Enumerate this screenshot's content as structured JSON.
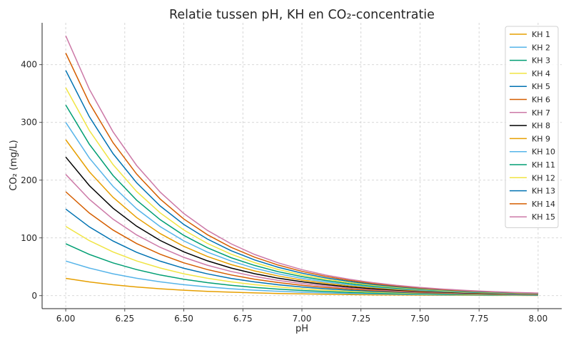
{
  "chart_data": {
    "type": "line",
    "title": "Relatie tussen pH, KH en CO₂-concentratie",
    "xlabel": "pH",
    "ylabel": "CO₂ (mg/L)",
    "xlim": [
      5.9,
      8.1
    ],
    "ylim": [
      -22.5,
      472.5
    ],
    "xticks": [
      6.0,
      6.25,
      6.5,
      6.75,
      7.0,
      7.25,
      7.5,
      7.75,
      8.0
    ],
    "xtick_labels": [
      "6.00",
      "6.25",
      "6.50",
      "6.75",
      "7.00",
      "7.25",
      "7.50",
      "7.75",
      "8.00"
    ],
    "yticks": [
      0,
      100,
      200,
      300,
      400
    ],
    "ytick_labels": [
      "0",
      "100",
      "200",
      "300",
      "400"
    ],
    "grid": true,
    "legend_position": "top-right",
    "x": [
      6.0,
      6.1,
      6.2,
      6.3,
      6.4,
      6.5,
      6.6,
      6.7,
      6.8,
      6.9,
      7.0,
      7.1,
      7.2,
      7.3,
      7.4,
      7.5,
      7.6,
      7.7,
      7.8,
      7.9,
      8.0
    ],
    "series": [
      {
        "name": "KH 1",
        "color": "#E69F00",
        "values": [
          30,
          23.8,
          18.9,
          15.0,
          11.9,
          9.5,
          7.5,
          6.0,
          4.8,
          3.8,
          3.0,
          2.4,
          1.9,
          1.5,
          1.2,
          0.9,
          0.8,
          0.6,
          0.5,
          0.4,
          0.3
        ]
      },
      {
        "name": "KH 2",
        "color": "#56B4E9",
        "values": [
          60,
          47.7,
          37.9,
          30.1,
          23.9,
          19.0,
          15.1,
          12.0,
          9.5,
          7.6,
          6.0,
          4.8,
          3.8,
          3.0,
          2.4,
          1.9,
          1.5,
          1.2,
          1.0,
          0.8,
          0.6
        ]
      },
      {
        "name": "KH 3",
        "color": "#009E73",
        "values": [
          90,
          71.5,
          56.8,
          45.1,
          35.8,
          28.5,
          22.6,
          18.0,
          14.3,
          11.3,
          9.0,
          7.1,
          5.7,
          4.5,
          3.6,
          2.8,
          2.3,
          1.8,
          1.4,
          1.1,
          0.9
        ]
      },
      {
        "name": "KH 4",
        "color": "#F0E442",
        "values": [
          120,
          95.3,
          75.7,
          60.1,
          47.8,
          37.9,
          30.1,
          23.9,
          19.0,
          15.1,
          12.0,
          9.5,
          7.6,
          6.0,
          4.8,
          3.8,
          3.0,
          2.4,
          1.9,
          1.5,
          1.2
        ]
      },
      {
        "name": "KH 5",
        "color": "#0072B2",
        "values": [
          150,
          119.1,
          94.6,
          75.2,
          59.7,
          47.4,
          37.7,
          29.9,
          23.8,
          18.9,
          15.0,
          11.9,
          9.5,
          7.5,
          6.0,
          4.7,
          3.8,
          3.0,
          2.4,
          1.9,
          1.5
        ]
      },
      {
        "name": "KH 6",
        "color": "#D55E00",
        "values": [
          180,
          143.0,
          113.6,
          90.2,
          71.7,
          56.9,
          45.2,
          35.9,
          28.5,
          22.7,
          18.0,
          14.3,
          11.4,
          9.0,
          7.2,
          5.7,
          4.5,
          3.6,
          2.9,
          2.3,
          1.8
        ]
      },
      {
        "name": "KH 7",
        "color": "#CC79A7",
        "values": [
          210,
          166.8,
          132.5,
          105.2,
          83.6,
          66.4,
          52.7,
          41.9,
          33.3,
          26.4,
          21.0,
          16.7,
          13.3,
          10.5,
          8.4,
          6.6,
          5.3,
          4.2,
          3.3,
          2.6,
          2.1
        ]
      },
      {
        "name": "KH 8",
        "color": "#000000",
        "values": [
          240,
          190.6,
          151.4,
          120.3,
          95.5,
          75.9,
          60.3,
          47.9,
          38.0,
          30.2,
          24.0,
          19.1,
          15.1,
          12.0,
          9.6,
          7.6,
          6.0,
          4.8,
          3.8,
          3.0,
          2.4
        ]
      },
      {
        "name": "KH 9",
        "color": "#E69F00",
        "values": [
          270,
          214.5,
          170.4,
          135.3,
          107.5,
          85.4,
          67.8,
          53.9,
          42.8,
          34.0,
          27.0,
          21.4,
          17.0,
          13.5,
          10.7,
          8.5,
          6.8,
          5.4,
          4.3,
          3.4,
          2.7
        ]
      },
      {
        "name": "KH 10",
        "color": "#56B4E9",
        "values": [
          300,
          238.3,
          189.3,
          150.4,
          119.4,
          94.9,
          75.4,
          59.9,
          47.5,
          37.8,
          30.0,
          23.8,
          18.9,
          15.0,
          11.9,
          9.5,
          7.5,
          6.0,
          4.8,
          3.8,
          3.0
        ]
      },
      {
        "name": "KH 11",
        "color": "#009E73",
        "values": [
          330,
          262.1,
          208.2,
          165.4,
          131.4,
          104.4,
          82.9,
          65.8,
          52.3,
          41.5,
          33.0,
          26.2,
          20.8,
          16.5,
          13.1,
          10.4,
          8.3,
          6.6,
          5.2,
          4.2,
          3.3
        ]
      },
      {
        "name": "KH 12",
        "color": "#F0E442",
        "values": [
          360,
          286.0,
          227.1,
          180.4,
          143.3,
          113.8,
          90.4,
          71.8,
          57.1,
          45.3,
          36.0,
          28.6,
          22.7,
          18.0,
          14.3,
          11.4,
          9.0,
          7.2,
          5.7,
          4.5,
          3.6
        ]
      },
      {
        "name": "KH 13",
        "color": "#0072B2",
        "values": [
          390,
          309.8,
          246.1,
          195.5,
          155.3,
          123.3,
          98.0,
          77.8,
          61.8,
          49.1,
          39.0,
          31.0,
          24.6,
          19.5,
          15.5,
          12.3,
          9.8,
          7.8,
          6.2,
          4.9,
          3.9
        ]
      },
      {
        "name": "KH 14",
        "color": "#D55E00",
        "values": [
          420,
          333.6,
          265.0,
          210.5,
          167.2,
          132.8,
          105.5,
          83.8,
          66.6,
          52.9,
          42.0,
          33.4,
          26.5,
          21.1,
          16.7,
          13.3,
          10.5,
          8.4,
          6.7,
          5.3,
          4.2
        ]
      },
      {
        "name": "KH 15",
        "color": "#CC79A7",
        "values": [
          450,
          357.4,
          283.9,
          225.5,
          179.2,
          142.3,
          113.0,
          89.8,
          71.3,
          56.7,
          45.0,
          35.7,
          28.4,
          22.6,
          17.9,
          14.2,
          11.3,
          9.0,
          7.1,
          5.7,
          4.5
        ]
      }
    ]
  }
}
